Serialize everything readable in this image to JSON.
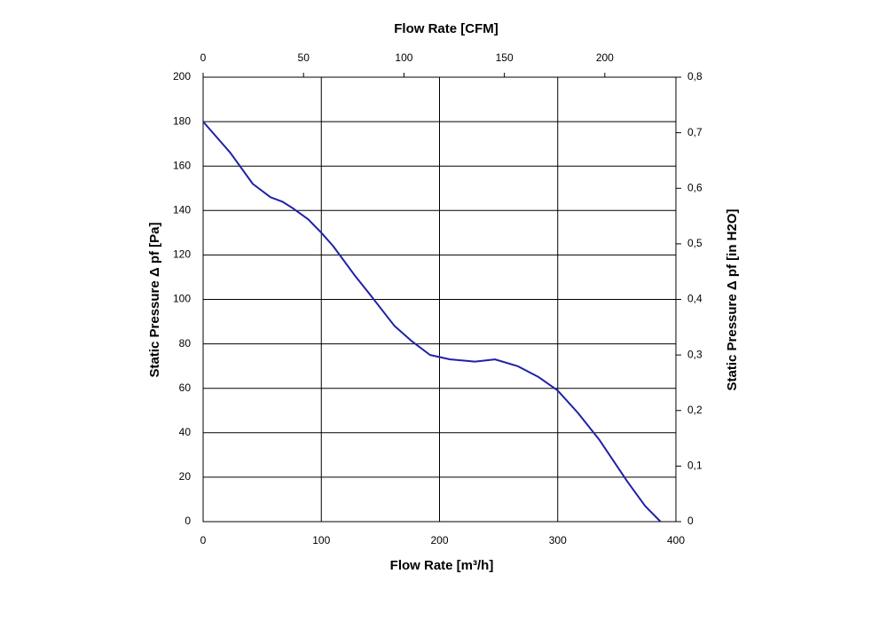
{
  "chart_data": {
    "type": "line",
    "title": "Flow Rate [CFM]",
    "x_label": "Flow Rate [m³/h]",
    "y_label": "Static Pressure Δ pf [Pa]",
    "y2_label": "Static Pressure Δ pf [in H2O]",
    "xlim": [
      0,
      400
    ],
    "xticks": [
      0,
      100,
      200,
      300,
      400
    ],
    "ylim": [
      0,
      200
    ],
    "yticks": [
      0,
      20,
      40,
      60,
      80,
      100,
      120,
      140,
      160,
      180,
      200
    ],
    "x2lim": [
      0,
      235.4
    ],
    "x2ticks": [
      0,
      50,
      100,
      150,
      200
    ],
    "y2lim": [
      0,
      0.8
    ],
    "y2ticks": [
      0,
      {
        "value": 0.1,
        "label": "0,1"
      },
      {
        "value": 0.2,
        "label": "0,2"
      },
      {
        "value": 0.3,
        "label": "0,3"
      },
      {
        "value": 0.4,
        "label": "0,4"
      },
      {
        "value": 0.5,
        "label": "0,5"
      },
      {
        "value": 0.6,
        "label": "0,6"
      },
      {
        "value": 0.7,
        "label": "0,7"
      },
      {
        "value": 0.8,
        "label": "0,8"
      }
    ],
    "grid": true,
    "x": [
      0,
      23,
      42,
      57,
      67,
      76,
      89,
      100,
      110,
      128,
      140,
      162,
      177,
      192,
      209,
      230,
      247,
      266,
      284,
      300,
      317,
      335,
      359,
      374,
      387
    ],
    "series": [
      {
        "color": "#2020a8",
        "values": [
          180,
          166,
          152,
          146,
          144,
          141,
          136,
          130,
          124,
          111,
          103,
          88,
          81,
          75,
          73,
          72,
          73,
          70,
          65,
          59,
          49,
          37,
          18,
          7,
          0
        ]
      }
    ]
  }
}
